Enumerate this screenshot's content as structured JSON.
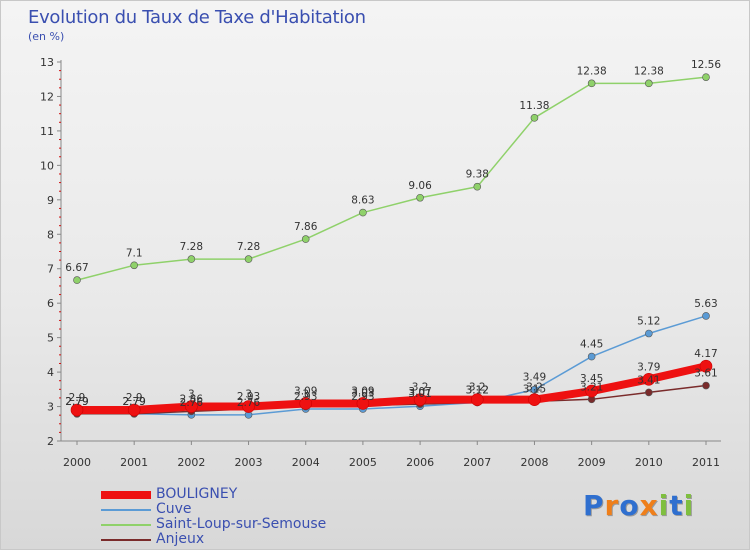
{
  "title": "Evolution du Taux de Taxe d'Habitation",
  "unit_label": "(en %)",
  "logo": {
    "letters": [
      "P",
      "r",
      "o",
      "x",
      "i",
      "t",
      "i"
    ],
    "colors": [
      "#2f6fcf",
      "#ef7f1a",
      "#2f6fcf",
      "#ef7f1a",
      "#7fbf3f",
      "#2f6fcf",
      "#7fbf3f"
    ]
  },
  "chart_data": {
    "type": "line",
    "title": "Evolution du Taux de Taxe d'Habitation",
    "ylabel": "(en %)",
    "xlabel": "",
    "categories": [
      "2000",
      "2001",
      "2002",
      "2003",
      "2004",
      "2005",
      "2006",
      "2007",
      "2008",
      "2009",
      "2010",
      "2011"
    ],
    "ylim": [
      2,
      13
    ],
    "yticks": [
      2,
      3,
      4,
      5,
      6,
      7,
      8,
      9,
      10,
      11,
      12,
      13
    ],
    "series": [
      {
        "name": "BOULIGNEY",
        "color": "#ee1111",
        "values": [
          2.9,
          2.9,
          3,
          3,
          3.09,
          3.09,
          3.2,
          3.2,
          3.2,
          3.45,
          3.79,
          4.17
        ],
        "labels": [
          "2.9",
          "2.9",
          "3",
          "3",
          "3.09",
          "3.09",
          "3.2",
          "3.2",
          "3.2",
          "3.45",
          "3.79",
          "4.17"
        ]
      },
      {
        "name": "Cuve",
        "color": "#5b9bd5",
        "values": [
          2.79,
          2.79,
          2.76,
          2.76,
          2.93,
          2.93,
          3.01,
          3.12,
          3.49,
          4.45,
          5.12,
          5.63
        ],
        "labels": [
          "2.79",
          "2.79",
          "2.76",
          "2.76",
          "2.93",
          "2.93",
          "3.01",
          "3.12",
          "3.49",
          "4.45",
          "5.12",
          "5.63"
        ]
      },
      {
        "name": "Saint-Loup-sur-Semouse",
        "color": "#8fd16a",
        "values": [
          6.67,
          7.1,
          7.28,
          7.28,
          7.86,
          8.63,
          9.06,
          9.38,
          11.38,
          12.38,
          12.38,
          12.56
        ],
        "labels": [
          "6.67",
          "7.1",
          "7.28",
          "7.28",
          "7.86",
          "8.63",
          "9.06",
          "9.38",
          "11.38",
          "12.38",
          "12.38",
          "12.56"
        ]
      },
      {
        "name": "Anjeux",
        "color": "#7a2b2b",
        "values": [
          2.79,
          2.79,
          2.86,
          2.93,
          3.0,
          3.03,
          3.07,
          3.12,
          3.15,
          3.21,
          3.41,
          3.61
        ],
        "labels": [
          "2.79",
          "2.79",
          "2.86",
          "2.93",
          "3",
          "3.03",
          "3.07",
          "3.12",
          "3.15",
          "3.21",
          "3.41",
          "3.61"
        ]
      }
    ]
  }
}
